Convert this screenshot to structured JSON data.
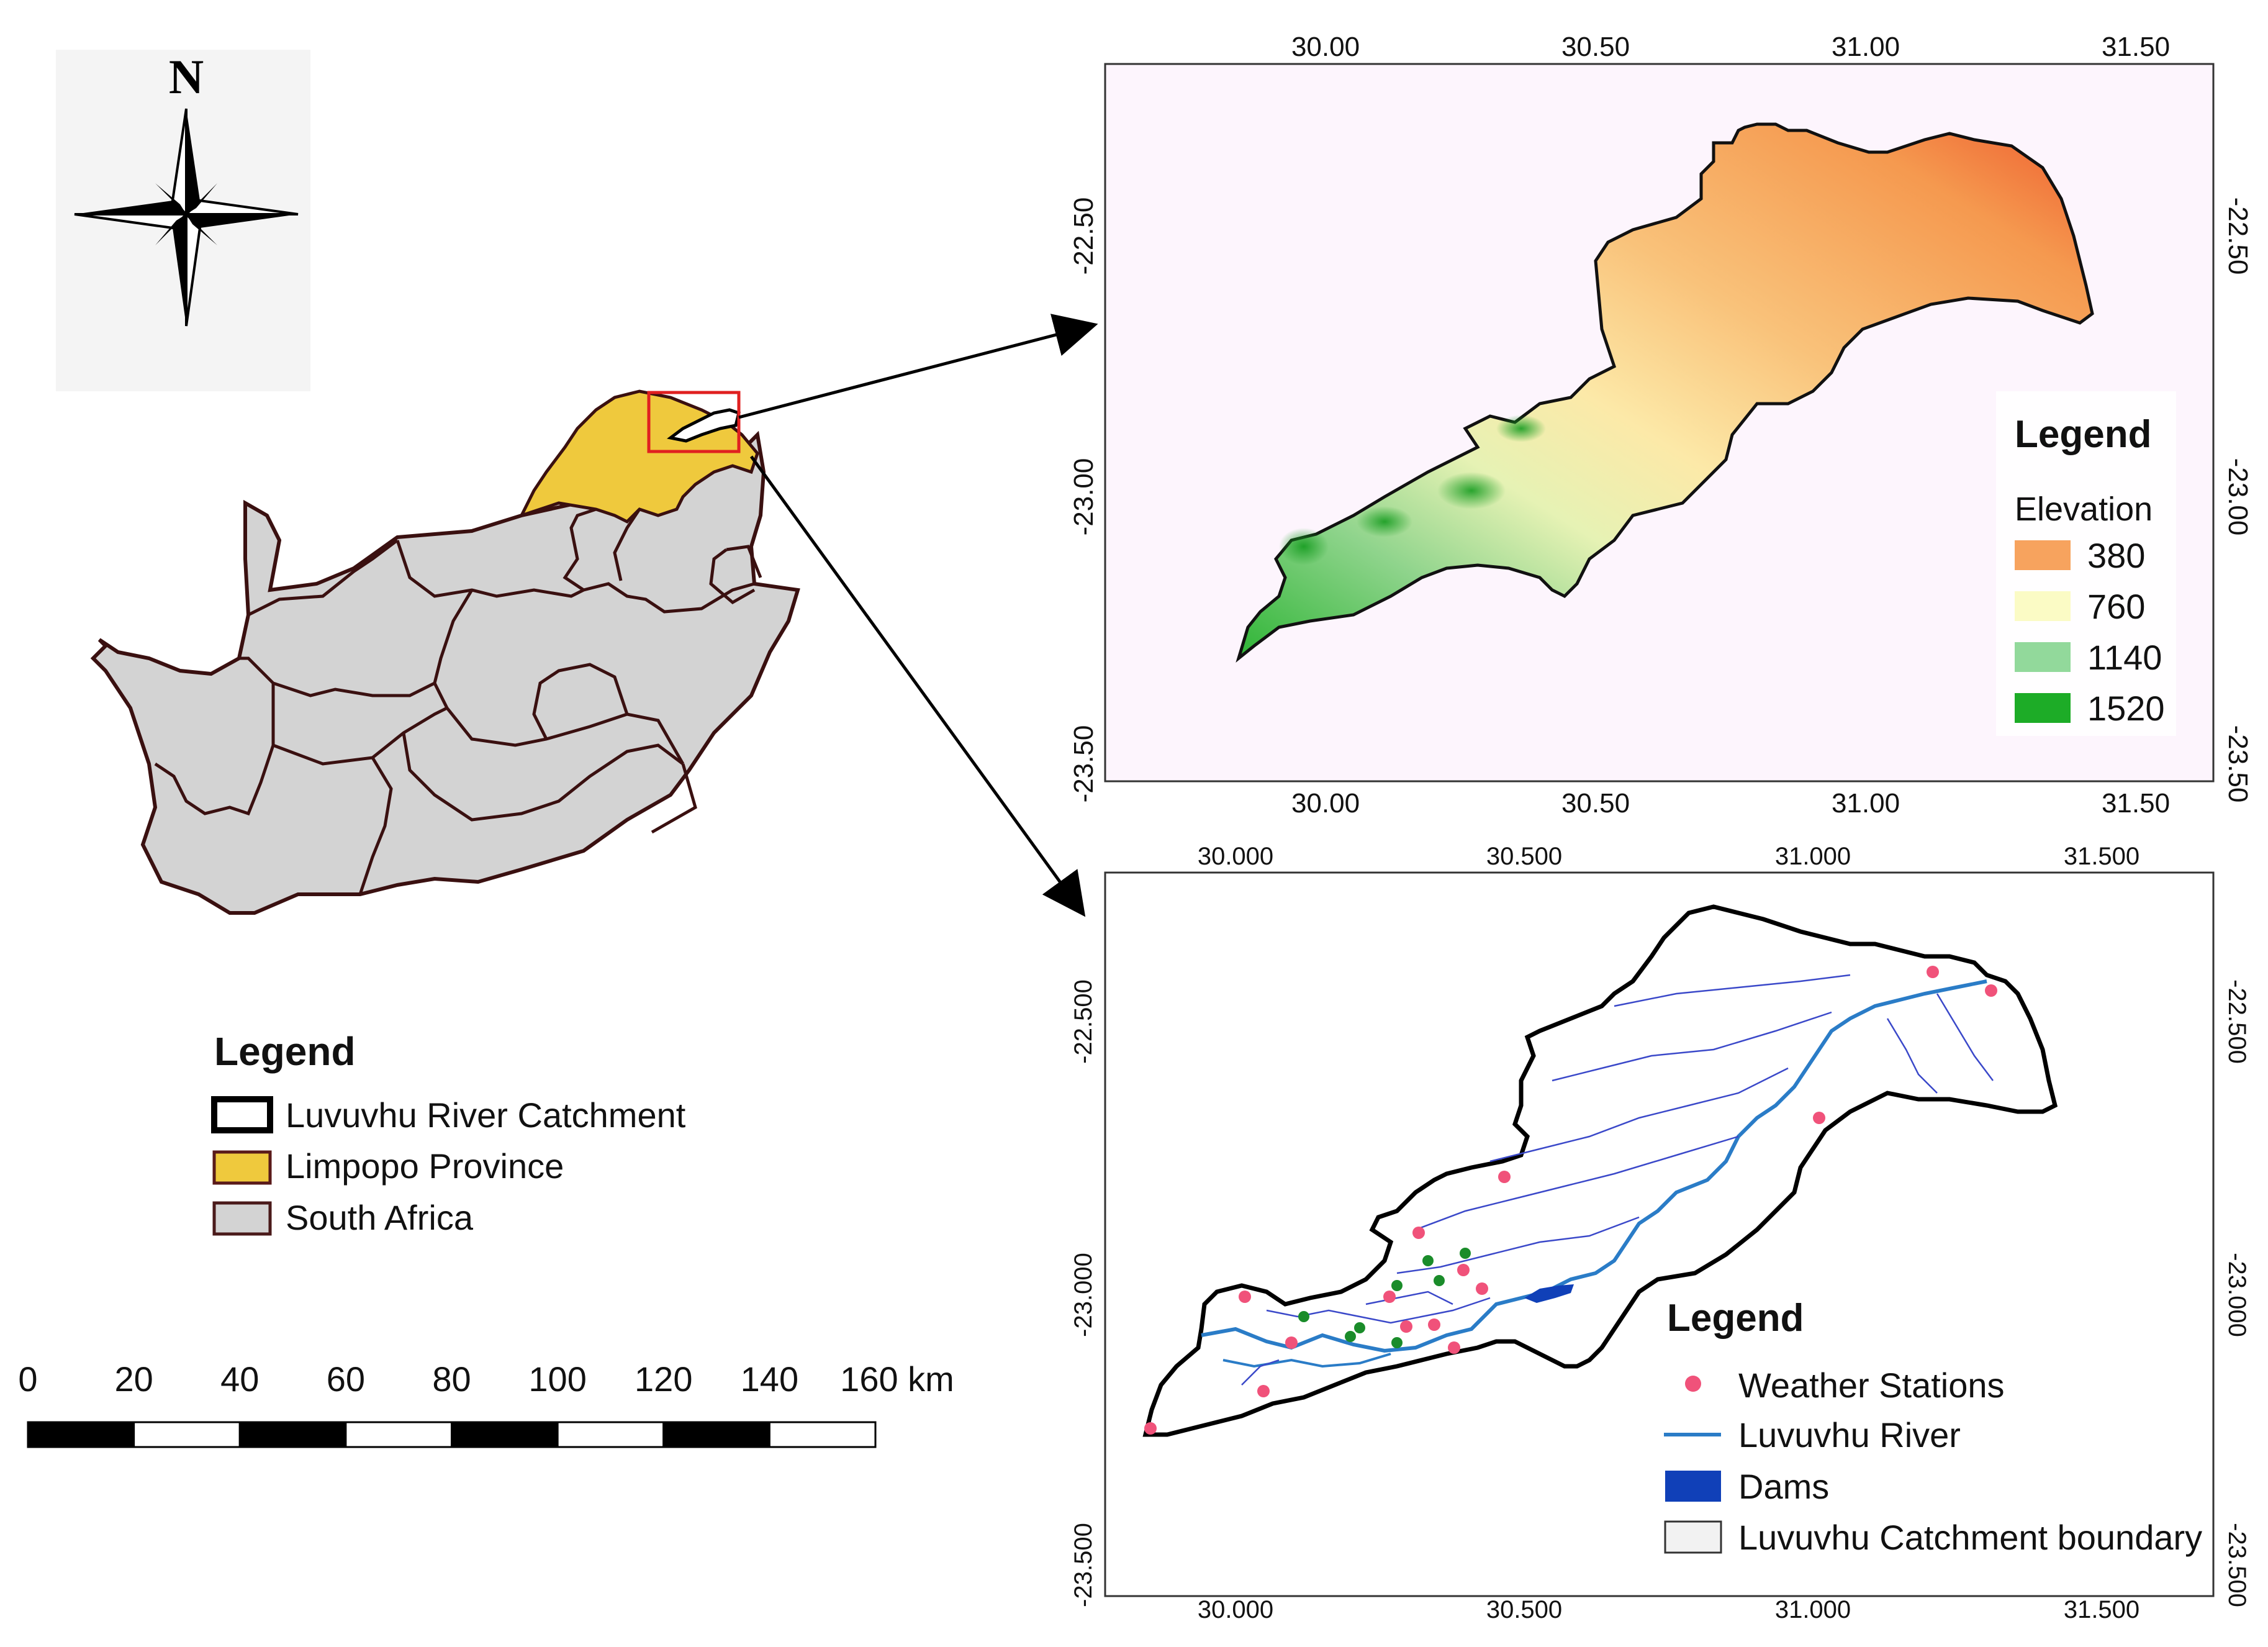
{
  "north_arrow": {
    "label": "N"
  },
  "overview_legend": {
    "title": "Legend",
    "items": [
      {
        "label": "Luvuvhu River Catchment",
        "swatch": "#ffffff",
        "border": "#000000"
      },
      {
        "label": "Limpopo Province",
        "swatch": "#efc93d",
        "border": "#5a1a1a"
      },
      {
        "label": "South Africa",
        "swatch": "#d3d3d3",
        "border": "#4a1a1a"
      }
    ]
  },
  "scale_bar": {
    "ticks": [
      "0",
      "20",
      "40",
      "60",
      "80",
      "100",
      "120",
      "140",
      "160 km"
    ]
  },
  "elevation_map": {
    "x_ticks": [
      "30.00",
      "30.50",
      "31.00",
      "31.50"
    ],
    "y_ticks": [
      "-22.50",
      "-23.00",
      "-23.50"
    ],
    "background": "#fdf5fd",
    "legend": {
      "title": "Legend",
      "subtitle": "Elevation",
      "items": [
        {
          "label": "380",
          "color": "#f7a35e"
        },
        {
          "label": "760",
          "color": "#fbfbc5"
        },
        {
          "label": "1140",
          "color": "#92d99b"
        },
        {
          "label": "1520",
          "color": "#1dac27"
        }
      ]
    }
  },
  "hydro_map": {
    "x_ticks": [
      "30.000",
      "30.500",
      "31.000",
      "31.500"
    ],
    "y_ticks": [
      "-22.500",
      "-23.000",
      "-23.500"
    ],
    "legend": {
      "title": "Legend",
      "items": [
        {
          "label": "Weather Stations",
          "color": "#f0527a"
        },
        {
          "label": "Luvuvhu River",
          "color": "#2a7cc7"
        },
        {
          "label": "Dams",
          "color": "#1040b8"
        },
        {
          "label": "Luvuvhu Catchment boundary",
          "color": "#f2f2f2"
        }
      ]
    }
  }
}
